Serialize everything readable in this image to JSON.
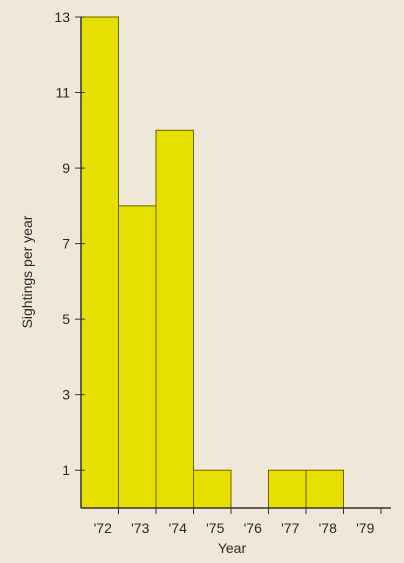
{
  "chart_data": {
    "type": "bar",
    "categories": [
      "'72",
      "'73",
      "'74",
      "'75",
      "'76",
      "'77",
      "'78",
      "'79"
    ],
    "values": [
      13,
      8,
      10,
      1,
      0,
      1,
      1,
      0
    ],
    "xlabel": "Year",
    "ylabel": "Sightings per year",
    "yticks": [
      1,
      3,
      5,
      7,
      9,
      11,
      13
    ],
    "ylim": [
      0,
      13
    ],
    "grid": false,
    "colors": {
      "bar": "#e6df00",
      "bar_edge": "#6b6500",
      "axis": "#333333",
      "background": "#efe8d8"
    }
  }
}
